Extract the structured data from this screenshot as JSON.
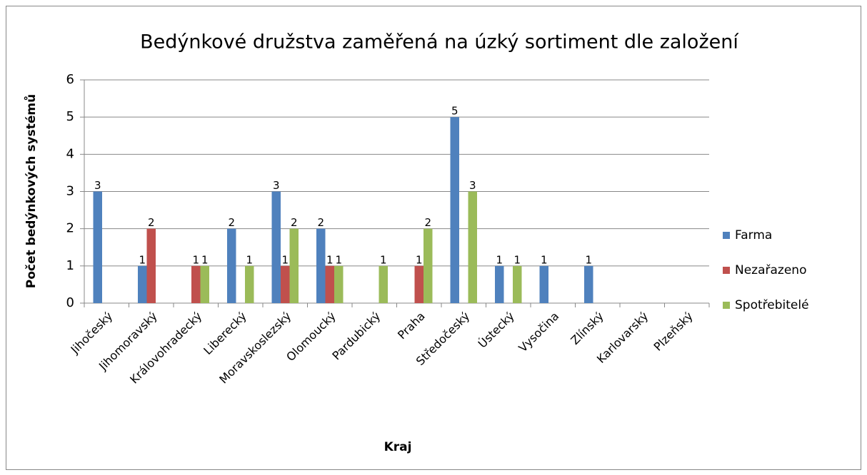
{
  "chart_data": {
    "type": "bar",
    "title": "Bedýnkové družstva zaměřená na úzký sortiment dle založení",
    "x_label": "Kraj",
    "y_label": "Počet bedýnkových systémů",
    "categories": [
      "Jihočeský",
      "Jihomoravský",
      "Královohradecký",
      "Liberecký",
      "Moravskoslezský",
      "Olomoucký",
      "Pardubický",
      "Praha",
      "Středočeský",
      "Ústecký",
      "Vysočina",
      "Zlínský",
      "Karlovarský",
      "Plzeňský"
    ],
    "series": [
      {
        "name": "Farma",
        "color": "#4f81bd",
        "values": [
          3,
          1,
          null,
          2,
          3,
          2,
          null,
          null,
          5,
          1,
          1,
          1,
          null,
          null
        ]
      },
      {
        "name": "Nezařazeno",
        "color": "#c0504d",
        "values": [
          null,
          2,
          1,
          null,
          1,
          1,
          null,
          1,
          null,
          null,
          null,
          null,
          null,
          null
        ]
      },
      {
        "name": "Spotřebitelé",
        "color": "#9bbb59",
        "values": [
          null,
          null,
          1,
          1,
          2,
          1,
          1,
          2,
          3,
          1,
          null,
          null,
          null,
          null
        ]
      }
    ],
    "ylim": [
      0,
      6
    ],
    "yticks": [
      0,
      1,
      2,
      3,
      4,
      5,
      6
    ],
    "grid": true,
    "legend": "right"
  }
}
